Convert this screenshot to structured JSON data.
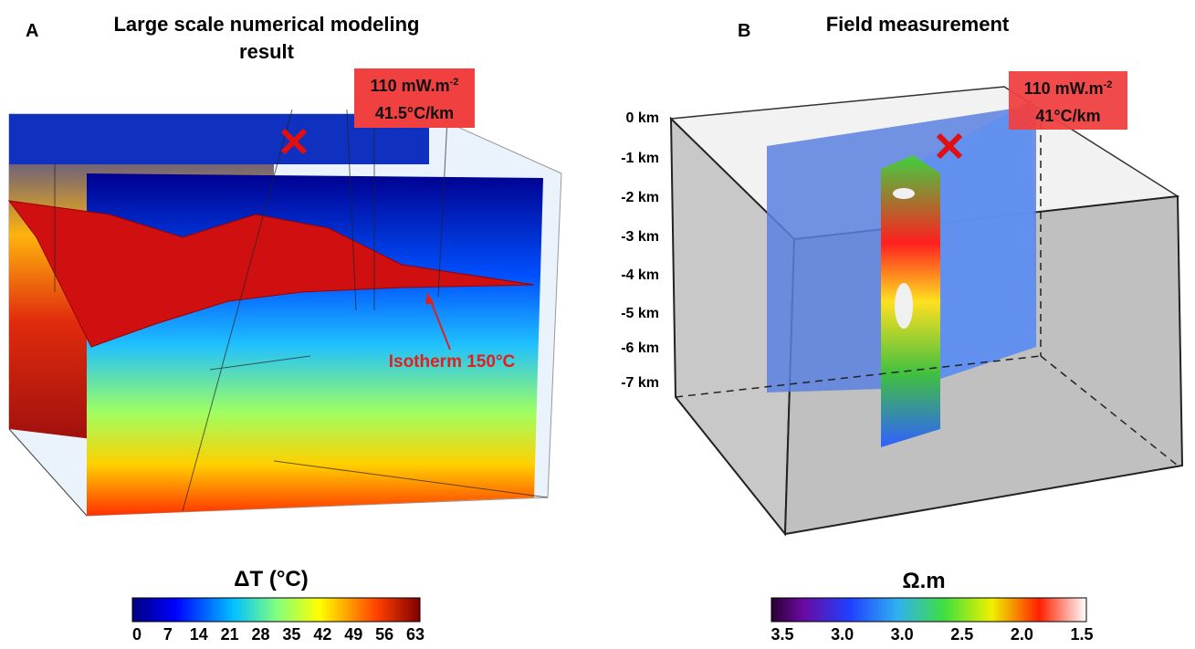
{
  "panel_a": {
    "letter": "A",
    "title_lines": [
      "Large scale numerical modeling",
      "result"
    ],
    "callout": {
      "flux": "110 mW.m",
      "flux_exponent": "-2",
      "gradient": "41.5°C/km"
    },
    "annotation": "Isotherm 150°C",
    "colorbar": {
      "title": "ΔT (°C)",
      "ticks": [
        0,
        7,
        14,
        21,
        28,
        35,
        42,
        49,
        56,
        63
      ]
    }
  },
  "panel_b": {
    "letter": "B",
    "title": "Field measurement",
    "callout": {
      "flux": "110 mW.m",
      "flux_exponent": "-2",
      "gradient": "41°C/km"
    },
    "depth_labels": [
      "0 km",
      "-1 km",
      "-2 km",
      "-3 km",
      "-4 km",
      "-5 km",
      "-6 km",
      "-7 km"
    ],
    "colorbar": {
      "title": "Ω.m",
      "ticks": [
        "3.5",
        "3.0",
        "3.0",
        "2.5",
        "2.0",
        "1.5"
      ]
    }
  }
}
